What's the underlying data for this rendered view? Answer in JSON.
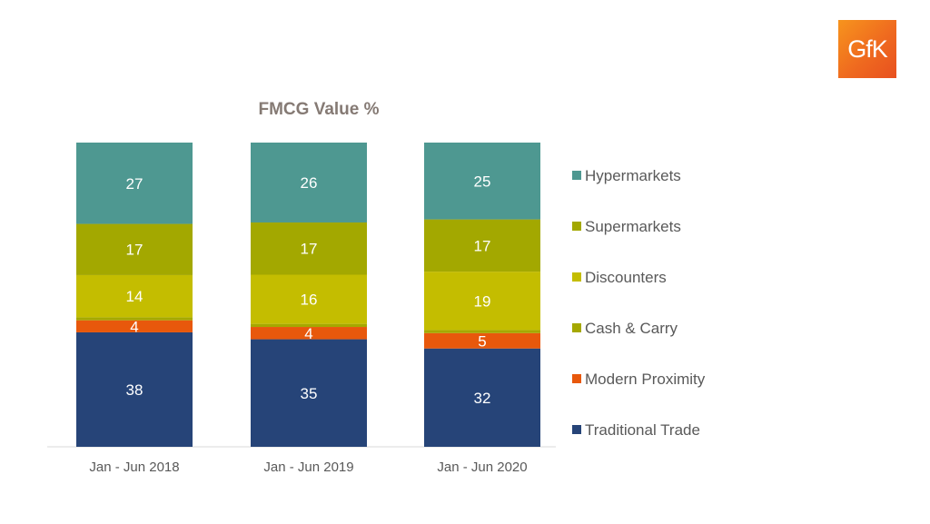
{
  "brand": {
    "logo_text": "GfK",
    "logo_color": "#ef6a1f"
  },
  "chart_data": {
    "type": "bar",
    "stacked": true,
    "title": "FMCG Value %",
    "categories": [
      "Jan - Jun 2018",
      "Jan - Jun 2019",
      "Jan - Jun 2020"
    ],
    "series": [
      {
        "name": "Traditional Trade",
        "color": "#264478",
        "values": [
          38,
          35,
          32
        ],
        "labels": [
          "38",
          "35",
          "32"
        ]
      },
      {
        "name": "Modern Proximity",
        "color": "#e8580c",
        "values": [
          4,
          4,
          5
        ],
        "labels": [
          "4",
          "4",
          "5"
        ]
      },
      {
        "name": "Cash & Carry",
        "color": "#a5a800",
        "values": [
          1,
          1,
          1
        ],
        "labels": [
          "",
          "",
          ""
        ]
      },
      {
        "name": "Discounters",
        "color": "#c4bd00",
        "values": [
          14,
          16,
          19
        ],
        "labels": [
          "14",
          "16",
          "19"
        ]
      },
      {
        "name": "Supermarkets",
        "color": "#a3a800",
        "values": [
          17,
          17,
          17
        ],
        "labels": [
          "17",
          "17",
          "17"
        ]
      },
      {
        "name": "Hypermarkets",
        "color": "#4e9891",
        "values": [
          27,
          26,
          25
        ],
        "labels": [
          "27",
          "26",
          "25"
        ]
      }
    ],
    "ylim": [
      0,
      100
    ],
    "grid": false,
    "legend_position": "right"
  }
}
